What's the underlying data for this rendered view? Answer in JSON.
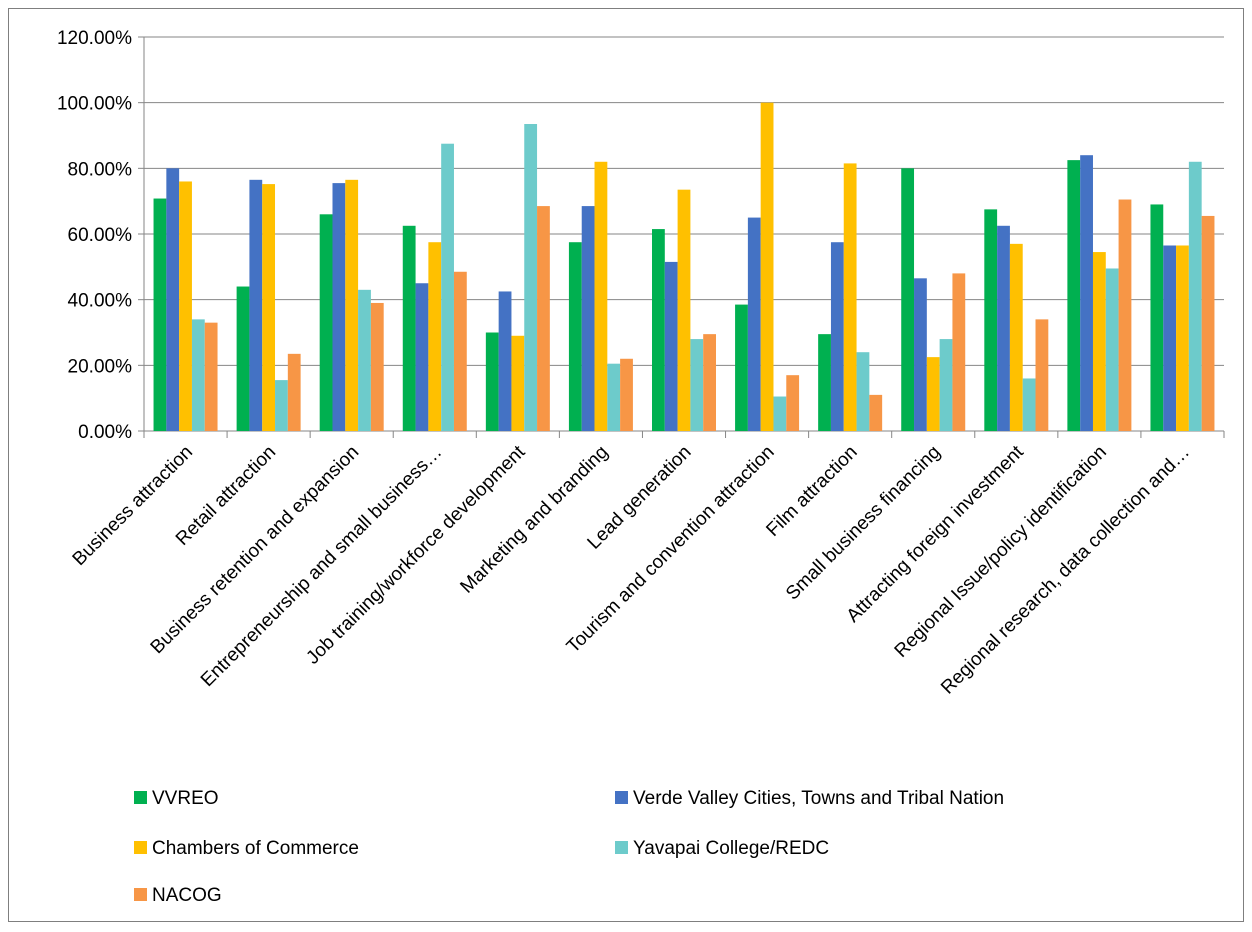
{
  "chart_data": {
    "type": "bar",
    "title": "",
    "xlabel": "",
    "ylabel": "",
    "ylim": [
      0,
      1.2
    ],
    "y_ticks": [
      "0.00%",
      "20.00%",
      "40.00%",
      "60.00%",
      "80.00%",
      "100.00%",
      "120.00%"
    ],
    "grid": "horizontal",
    "legend_position": "bottom",
    "categories": [
      "Business attraction",
      "Retail attraction",
      "Business retention and expansion",
      "Entrepreneurship and small business…",
      "Job training/workforce development",
      "Marketing and branding",
      "Lead generation",
      "Tourism and convention attraction",
      "Film attraction",
      "Small business financing",
      "Attracting foreign investment",
      "Regional Issue/policy identification",
      "Regional research, data collection and…"
    ],
    "series": [
      {
        "name": "VVREO",
        "color": "#00b050",
        "values": [
          0.708,
          0.44,
          0.66,
          0.625,
          0.3,
          0.575,
          0.615,
          0.385,
          0.295,
          0.8,
          0.675,
          0.825,
          0.69
        ]
      },
      {
        "name": "Verde Valley Cities, Towns and Tribal Nation",
        "color": "#4472c4",
        "values": [
          0.8,
          0.765,
          0.755,
          0.45,
          0.425,
          0.685,
          0.515,
          0.65,
          0.575,
          0.465,
          0.625,
          0.84,
          0.565
        ]
      },
      {
        "name": "Chambers of Commerce",
        "color": "#ffc000",
        "values": [
          0.76,
          0.752,
          0.765,
          0.575,
          0.29,
          0.82,
          0.735,
          1.0,
          0.815,
          0.225,
          0.57,
          0.545,
          0.565
        ]
      },
      {
        "name": "Yavapai College/REDC",
        "color": "#6dcbcb",
        "values": [
          0.34,
          0.155,
          0.43,
          0.875,
          0.935,
          0.205,
          0.28,
          0.105,
          0.24,
          0.28,
          0.16,
          0.495,
          0.82
        ]
      },
      {
        "name": "NACOG",
        "color": "#f79646",
        "values": [
          0.33,
          0.235,
          0.39,
          0.485,
          0.685,
          0.22,
          0.295,
          0.17,
          0.11,
          0.48,
          0.34,
          0.705,
          0.655
        ]
      }
    ]
  }
}
